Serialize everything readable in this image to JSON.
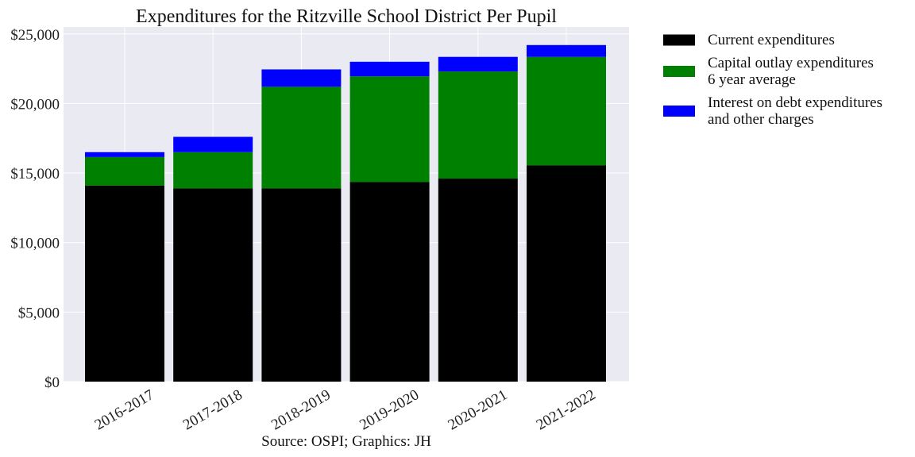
{
  "chart_data": {
    "type": "bar",
    "stacked": true,
    "title": "Expenditures for the Ritzville School District Per Pupil",
    "source_note": "Source: OSPI; Graphics: JH",
    "xlabel": "",
    "ylabel": "",
    "categories": [
      "2016-2017",
      "2017-2018",
      "2018-2019",
      "2019-2020",
      "2020-2021",
      "2021-2022"
    ],
    "ylim": [
      0,
      25500
    ],
    "yticks": [
      0,
      5000,
      10000,
      15000,
      20000,
      25000
    ],
    "ytick_labels": [
      "$0",
      "$5,000",
      "$10,000",
      "$15,000",
      "$20,000",
      "$25,000"
    ],
    "grid": true,
    "legend_position": "outside-right-top",
    "series": [
      {
        "name_lines": [
          "Current expenditures"
        ],
        "color": "#000000",
        "values": [
          14100,
          13900,
          13900,
          14350,
          14600,
          15550
        ]
      },
      {
        "name_lines": [
          "Capital outlay expenditures",
          "6 year average"
        ],
        "color": "#008000",
        "values": [
          2050,
          2600,
          7300,
          7600,
          7700,
          7800
        ]
      },
      {
        "name_lines": [
          "Interest on debt expenditures",
          "and other charges"
        ],
        "color": "#0000ff",
        "values": [
          350,
          1100,
          1250,
          1050,
          1050,
          850
        ]
      }
    ]
  }
}
